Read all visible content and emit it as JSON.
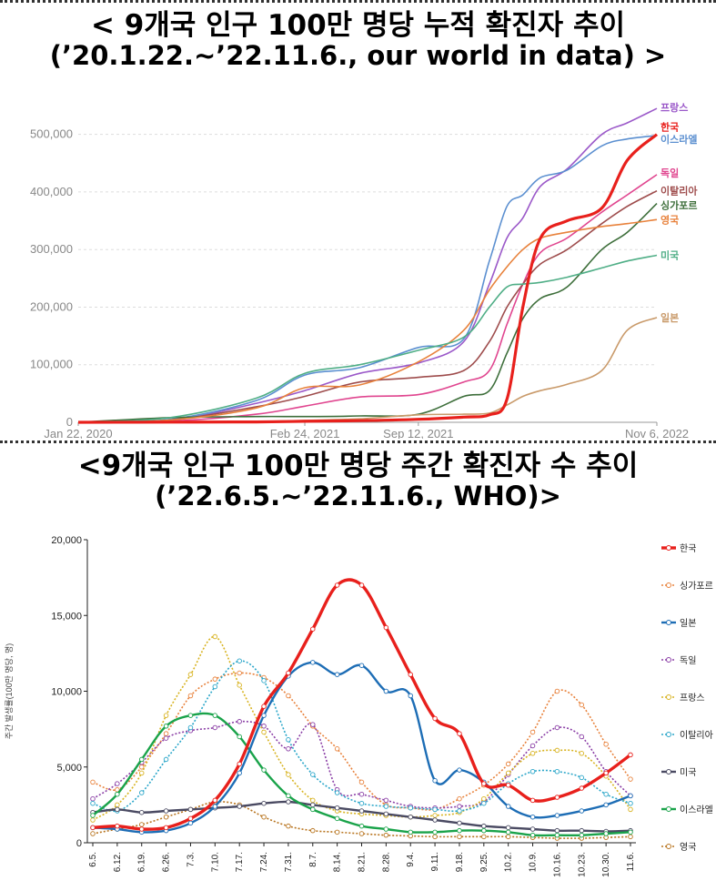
{
  "titles": {
    "top_line1": "< 9개국 인구 100만 명당 누적 확진자 추이",
    "top_line2": "(’20.1.22.~’22.11.6., our world in data) >",
    "bottom_line1": "<9개국 인구 100만 명당 주간 확진자 수 추이",
    "bottom_line2": "(’22.6.5.~’22.11.6., WHO)>"
  },
  "chart_data": [
    {
      "type": "line",
      "x_tick_labels": [
        "Jan 22, 2020",
        "Feb 24, 2021",
        "Sep 12, 2021",
        "Nov 6, 2022"
      ],
      "x_range": [
        "2020-01-22",
        "2022-11-06"
      ],
      "y_tick_labels": [
        "0",
        "100,000",
        "200,000",
        "300,000",
        "400,000",
        "500,000"
      ],
      "ylim": [
        0,
        520000
      ],
      "grid": "horizontal dashed",
      "legend": "direct labels at line ends (right)",
      "x": [
        "2020-01-22",
        "2020-07-01",
        "2020-12-01",
        "2021-02-24",
        "2021-06-01",
        "2021-09-12",
        "2021-12-01",
        "2022-01-15",
        "2022-02-15",
        "2022-03-15",
        "2022-04-15",
        "2022-06-01",
        "2022-08-01",
        "2022-09-15",
        "2022-11-06"
      ],
      "series": [
        {
          "name": "프랑스",
          "color": "#9b59c9",
          "values": [
            0,
            3000,
            33000,
            55000,
            85000,
            103000,
            140000,
            240000,
            320000,
            355000,
            410000,
            440000,
            500000,
            520000,
            545000
          ]
        },
        {
          "name": "한국",
          "color": "#e8201c",
          "values": [
            0,
            300,
            700,
            1800,
            2800,
            5200,
            9000,
            13000,
            40000,
            200000,
            320000,
            350000,
            372000,
            455000,
            500000
          ]
        },
        {
          "name": "이스라엘",
          "color": "#5b8fd0",
          "values": [
            0,
            5000,
            38000,
            82000,
            95000,
            130000,
            145000,
            280000,
            375000,
            395000,
            425000,
            438000,
            480000,
            492000,
            498000
          ]
        },
        {
          "name": "독일",
          "color": "#e0458f",
          "values": [
            0,
            2000,
            14000,
            28000,
            44000,
            48000,
            70000,
            90000,
            170000,
            240000,
            295000,
            320000,
            365000,
            395000,
            430000
          ]
        },
        {
          "name": "이탈리아",
          "color": "#9e4c4c",
          "values": [
            0,
            4000,
            27000,
            45000,
            70000,
            78000,
            90000,
            140000,
            200000,
            240000,
            275000,
            300000,
            345000,
            375000,
            402000
          ]
        },
        {
          "name": "싱가포르",
          "color": "#3d6e3a",
          "values": [
            0,
            8000,
            10000,
            10000,
            11000,
            14000,
            45000,
            55000,
            120000,
            180000,
            215000,
            235000,
            300000,
            330000,
            380000
          ]
        },
        {
          "name": "영국",
          "color": "#e8823c",
          "values": [
            0,
            4000,
            25000,
            60000,
            65000,
            105000,
            160000,
            230000,
            270000,
            300000,
            320000,
            330000,
            340000,
            345000,
            352000
          ]
        },
        {
          "name": "미국",
          "color": "#4fae86",
          "values": [
            0,
            8000,
            42000,
            85000,
            100000,
            125000,
            148000,
            200000,
            235000,
            240000,
            243000,
            252000,
            268000,
            280000,
            290000
          ]
        },
        {
          "name": "일본",
          "color": "#c99a6a",
          "values": [
            0,
            200,
            1200,
            3300,
            6000,
            13000,
            14000,
            16000,
            30000,
            45000,
            55000,
            66000,
            90000,
            160000,
            182000
          ]
        }
      ]
    },
    {
      "type": "line",
      "categories": [
        "6.5.",
        "6.12.",
        "6.19.",
        "6.26.",
        "7.3.",
        "7.10.",
        "7.17.",
        "7.24.",
        "7.31.",
        "8.7.",
        "8.14.",
        "8.21.",
        "8.28.",
        "9.4.",
        "9.11.",
        "9.18.",
        "9.25.",
        "10.2.",
        "10.9.",
        "10.16.",
        "10.23.",
        "10.30.",
        "11.6."
      ],
      "y_tick_labels": [
        "0",
        "5,000",
        "10,000",
        "15,000",
        "20,000"
      ],
      "ylim": [
        0,
        20000
      ],
      "ylabel": "주간 발생률(100만 명당, 명)",
      "legend": "right",
      "series": [
        {
          "name": "한국",
          "color": "#e8201c",
          "style": "solid-bold",
          "values": [
            1000,
            1100,
            900,
            1000,
            1600,
            2800,
            5200,
            9000,
            11200,
            14100,
            17000,
            17000,
            14200,
            11100,
            8200,
            7200,
            3900,
            3800,
            2800,
            3000,
            3600,
            4600,
            5800
          ]
        },
        {
          "name": "싱가포르",
          "color": "#e8823c",
          "style": "dotted",
          "values": [
            4000,
            3500,
            5000,
            7200,
            9700,
            10800,
            11200,
            10900,
            9700,
            7700,
            6200,
            4000,
            2500,
            2300,
            2200,
            2900,
            3800,
            5200,
            7300,
            10000,
            9100,
            6500,
            4200
          ]
        },
        {
          "name": "일본",
          "color": "#1d6db5",
          "style": "solid",
          "values": [
            1000,
            900,
            700,
            800,
            1300,
            2400,
            4600,
            8400,
            11000,
            11900,
            11100,
            11700,
            10000,
            9700,
            4100,
            4800,
            4000,
            2400,
            1700,
            1800,
            2100,
            2500,
            3100
          ]
        },
        {
          "name": "독일",
          "color": "#8b3fa6",
          "style": "dotted",
          "values": [
            2900,
            3900,
            5300,
            6900,
            7400,
            7600,
            8000,
            7700,
            6200,
            7800,
            3500,
            3200,
            2800,
            2400,
            2300,
            2400,
            2700,
            4500,
            6400,
            7600,
            7000,
            4700,
            3100
          ]
        },
        {
          "name": "프랑스",
          "color": "#d8b321",
          "style": "dotted",
          "values": [
            1500,
            2500,
            4600,
            8400,
            11100,
            13600,
            10400,
            7300,
            4500,
            2800,
            2100,
            1900,
            1800,
            1700,
            1800,
            2000,
            2900,
            4600,
            5900,
            6100,
            5900,
            4400,
            2200
          ]
        },
        {
          "name": "이탈리아",
          "color": "#2aa6c9",
          "style": "dotted",
          "values": [
            2600,
            2100,
            3300,
            5500,
            7600,
            10300,
            12000,
            10700,
            6800,
            4500,
            3300,
            2600,
            2400,
            2300,
            2200,
            2100,
            2600,
            3900,
            4700,
            4700,
            4300,
            3200,
            2600
          ]
        },
        {
          "name": "미국",
          "color": "#4a4a62",
          "style": "solid-markers",
          "values": [
            2000,
            2200,
            2000,
            2100,
            2200,
            2300,
            2400,
            2600,
            2700,
            2500,
            2300,
            2100,
            1900,
            1700,
            1500,
            1300,
            1100,
            1000,
            900,
            800,
            800,
            750,
            800
          ]
        },
        {
          "name": "이스라엘",
          "color": "#1aa34a",
          "style": "solid",
          "values": [
            1800,
            3200,
            5500,
            7700,
            8400,
            8400,
            7000,
            4800,
            3100,
            2200,
            1600,
            1100,
            900,
            700,
            700,
            800,
            800,
            700,
            500,
            500,
            500,
            600,
            700
          ]
        },
        {
          "name": "영국",
          "color": "#b8741e",
          "style": "dotted",
          "values": [
            600,
            900,
            1200,
            1700,
            2200,
            2700,
            2500,
            1700,
            1100,
            800,
            700,
            600,
            500,
            450,
            400,
            400,
            400,
            400,
            350,
            300,
            300,
            350,
            400
          ]
        }
      ]
    }
  ]
}
